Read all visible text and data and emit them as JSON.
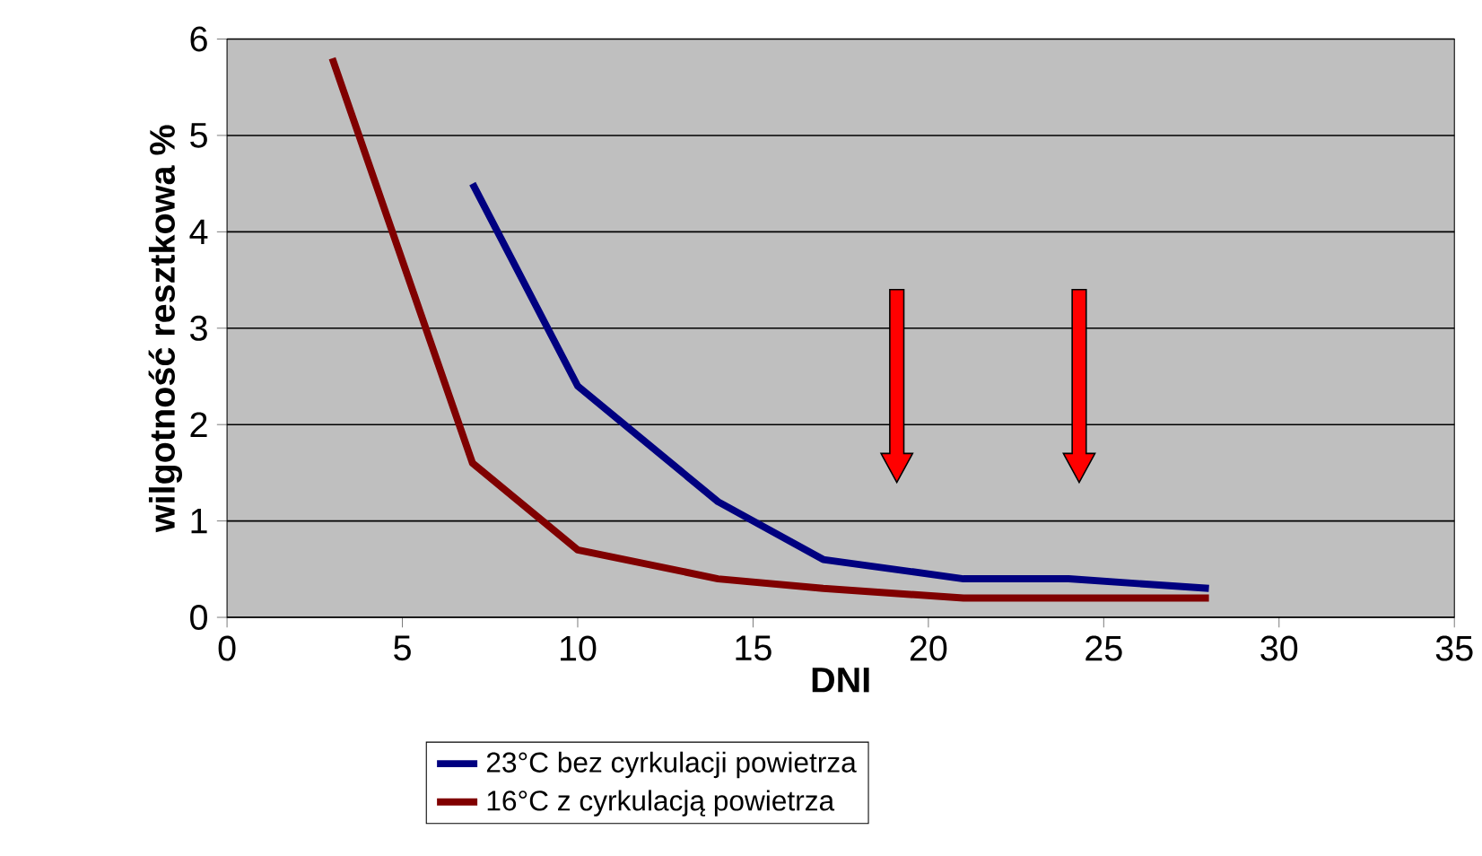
{
  "chart_data": {
    "type": "line",
    "xlabel": "DNI",
    "ylabel": "wilgotność resztkowa %",
    "xlim": [
      0,
      35
    ],
    "xticks": [
      0,
      5,
      10,
      15,
      20,
      25,
      30,
      35
    ],
    "ylim": [
      0,
      6
    ],
    "yticks": [
      0,
      1,
      2,
      3,
      4,
      5,
      6
    ],
    "grid": "y",
    "legend": "bottom",
    "series": [
      {
        "name": "23°C bez cyrkulacji powietrza",
        "color": "#000080",
        "x": [
          7,
          10,
          14,
          17,
          21,
          24,
          28
        ],
        "values": [
          4.5,
          2.4,
          1.2,
          0.6,
          0.4,
          0.4,
          0.3
        ]
      },
      {
        "name": "16°C z cyrkulacją powietrza",
        "color": "#800000",
        "x": [
          3,
          7,
          10,
          14,
          17,
          21,
          24,
          28
        ],
        "values": [
          5.8,
          1.6,
          0.7,
          0.4,
          0.3,
          0.2,
          0.2,
          0.2
        ]
      }
    ]
  }
}
